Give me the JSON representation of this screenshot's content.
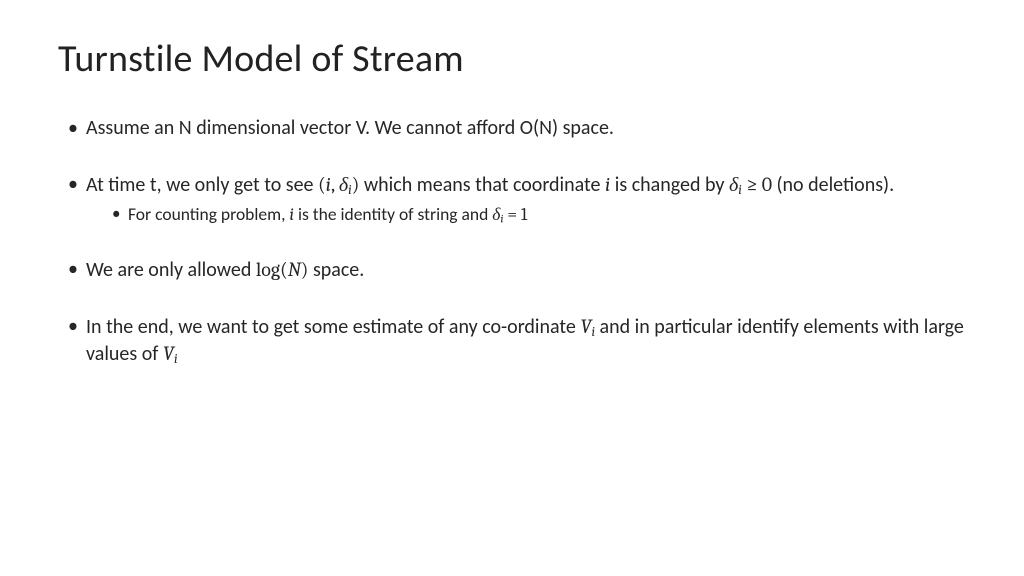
{
  "title": "Turnstile Model of Stream",
  "bullets": {
    "b1": "Assume an N dimensional vector V. We cannot afford O(N) space.",
    "b2_pre": " At time t, we only get to see ",
    "b2_tuple_open": "(",
    "b2_i": "i",
    "b2_comma": ", ",
    "b2_delta": "δ",
    "b2_tuple_close": ")",
    "b2_mid": "  which means that coordinate  ",
    "b2_i2": "i",
    "b2_post1": " is changed by ",
    "b2_delta2": "δ",
    "b2_geq": " ≥ 0 ",
    "b2_post2": " (no deletions).",
    "b2_sub_pre": "For counting problem, ",
    "b2_sub_i": "i",
    "b2_sub_mid": " is the identity of string and ",
    "b2_sub_delta": "δ",
    "b2_sub_eq": " = 1",
    "b3_pre": "We are only allowed ",
    "b3_log": "log",
    "b3_open": "(",
    "b3_N": "N",
    "b3_close": ")",
    "b3_post": " space.",
    "b4_pre": "In the end, we want to get some estimate of any co-ordinate ",
    "b4_V": "V",
    "b4_mid": " and in particular identify elements with large values of ",
    "b4_V2": "V"
  },
  "colors": {
    "text": "#262626",
    "background": "#ffffff"
  },
  "typography": {
    "title_fontsize": 38,
    "body_fontsize": 20,
    "sub_fontsize": 17.5,
    "font_family": "Calibri"
  }
}
